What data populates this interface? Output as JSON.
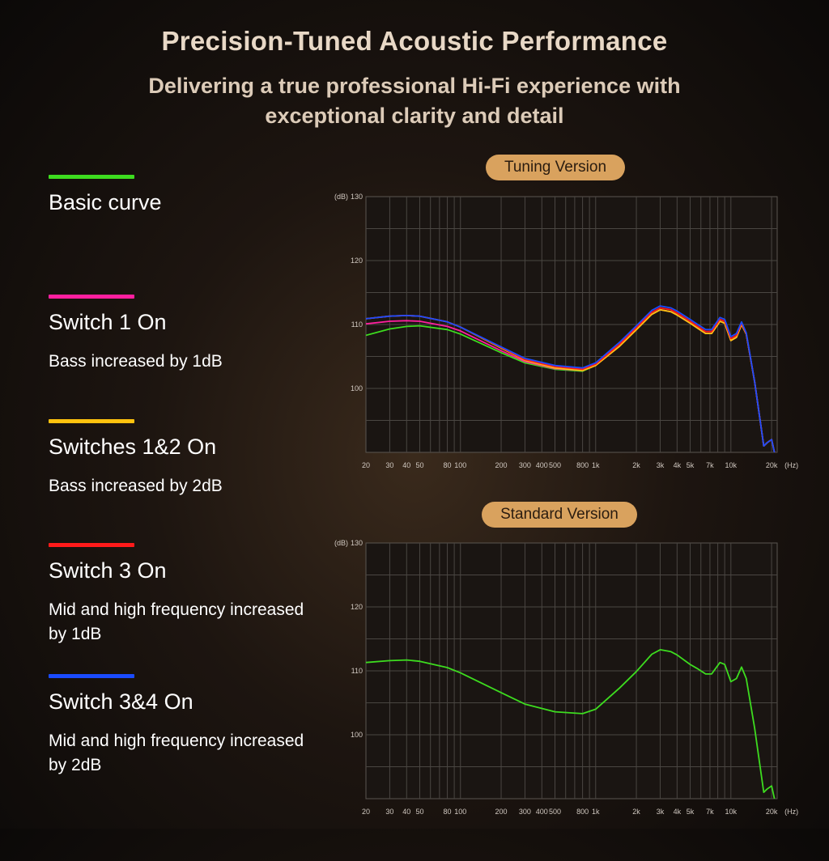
{
  "header": {
    "title": "Precision-Tuned Acoustic Performance",
    "subtitle": "Delivering a true professional Hi-Fi experience with exceptional clarity and detail"
  },
  "legend": [
    {
      "label": "Basic curve",
      "description": "",
      "color": "#3ddc1f"
    },
    {
      "label": "Switch 1 On",
      "description": "Bass increased by 1dB",
      "color": "#ff1f9f"
    },
    {
      "label": "Switches 1&2 On",
      "description": "Bass increased by 2dB",
      "color": "#ffc20e"
    },
    {
      "label": "Switch 3 On",
      "description": "Mid and high frequency increased by 1dB",
      "color": "#ff1a1a"
    },
    {
      "label": "Switch 3&4 On",
      "description": "Mid and high frequency increased by 2dB",
      "color": "#1a4bff"
    }
  ],
  "chart_data": [
    {
      "type": "line",
      "title": "Tuning Version",
      "xscale": "log",
      "xlim": [
        20,
        22000
      ],
      "ylim": [
        90,
        130
      ],
      "ylabel_unit": "(dB)",
      "xlabel_unit": "(Hz)",
      "yticks": [
        130,
        120,
        110,
        100
      ],
      "xticks": [
        {
          "v": 20,
          "l": "20"
        },
        {
          "v": 30,
          "l": "30"
        },
        {
          "v": 40,
          "l": "40"
        },
        {
          "v": 50,
          "l": "50"
        },
        {
          "v": 80,
          "l": "80"
        },
        {
          "v": 100,
          "l": "100"
        },
        {
          "v": 200,
          "l": "200"
        },
        {
          "v": 300,
          "l": "300"
        },
        {
          "v": 400,
          "l": "400"
        },
        {
          "v": 500,
          "l": "500"
        },
        {
          "v": 800,
          "l": "800"
        },
        {
          "v": 1000,
          "l": "1k"
        },
        {
          "v": 2000,
          "l": "2k"
        },
        {
          "v": 3000,
          "l": "3k"
        },
        {
          "v": 4000,
          "l": "4k"
        },
        {
          "v": 5000,
          "l": "5k"
        },
        {
          "v": 7000,
          "l": "7k"
        },
        {
          "v": 10000,
          "l": "10k"
        },
        {
          "v": 20000,
          "l": "20k"
        }
      ],
      "grid": true,
      "series": [
        {
          "name": "Basic curve",
          "color": "#3ddc1f",
          "points": [
            [
              20,
              108.3
            ],
            [
              30,
              109.3
            ],
            [
              40,
              109.7
            ],
            [
              50,
              109.8
            ],
            [
              80,
              109.2
            ],
            [
              100,
              108.5
            ],
            [
              200,
              105.6
            ],
            [
              300,
              104.0
            ],
            [
              500,
              103.0
            ],
            [
              800,
              102.7
            ],
            [
              1000,
              103.6
            ],
            [
              1500,
              106.6
            ],
            [
              2000,
              109.2
            ],
            [
              2600,
              111.6
            ],
            [
              3000,
              112.3
            ],
            [
              3600,
              112.0
            ],
            [
              4000,
              111.5
            ],
            [
              5000,
              110.2
            ],
            [
              5600,
              109.5
            ],
            [
              6500,
              108.6
            ],
            [
              7200,
              108.6
            ],
            [
              8300,
              110.5
            ],
            [
              9000,
              110.2
            ],
            [
              10000,
              107.5
            ],
            [
              11000,
              108.0
            ],
            [
              12000,
              110.0
            ],
            [
              13000,
              108.5
            ],
            [
              15000,
              101.0
            ],
            [
              17500,
              91.0
            ],
            [
              18500,
              91.5
            ],
            [
              20000,
              92.0
            ],
            [
              21000,
              90.0
            ]
          ]
        },
        {
          "name": "Switch 1 On",
          "color": "#ff1f9f",
          "points": [
            [
              20,
              110.1
            ],
            [
              30,
              110.5
            ],
            [
              40,
              110.6
            ],
            [
              50,
              110.5
            ],
            [
              80,
              109.7
            ],
            [
              100,
              109.0
            ],
            [
              200,
              105.9
            ],
            [
              300,
              104.2
            ],
            [
              500,
              103.1
            ],
            [
              800,
              102.8
            ],
            [
              1000,
              103.6
            ],
            [
              1500,
              106.6
            ],
            [
              2000,
              109.2
            ],
            [
              2600,
              111.6
            ],
            [
              3000,
              112.3
            ],
            [
              3600,
              112.0
            ],
            [
              4000,
              111.5
            ],
            [
              5000,
              110.2
            ],
            [
              5600,
              109.5
            ],
            [
              6500,
              108.6
            ],
            [
              7200,
              108.6
            ],
            [
              8300,
              110.5
            ],
            [
              9000,
              110.2
            ],
            [
              10000,
              107.5
            ],
            [
              11000,
              108.0
            ],
            [
              12000,
              110.0
            ],
            [
              13000,
              108.5
            ],
            [
              15000,
              101.0
            ],
            [
              17500,
              91.0
            ],
            [
              18500,
              91.5
            ],
            [
              20000,
              92.0
            ],
            [
              21000,
              90.0
            ]
          ]
        },
        {
          "name": "Switches 1&2 On",
          "color": "#ffc20e",
          "points": [
            [
              20,
              110.9
            ],
            [
              30,
              111.3
            ],
            [
              40,
              111.4
            ],
            [
              50,
              111.3
            ],
            [
              80,
              110.4
            ],
            [
              100,
              109.6
            ],
            [
              200,
              106.3
            ],
            [
              300,
              104.4
            ],
            [
              500,
              103.2
            ],
            [
              800,
              102.8
            ],
            [
              1000,
              103.6
            ],
            [
              1500,
              106.6
            ],
            [
              2000,
              109.2
            ],
            [
              2600,
              111.6
            ],
            [
              3000,
              112.3
            ],
            [
              3600,
              112.0
            ],
            [
              4000,
              111.5
            ],
            [
              5000,
              110.2
            ],
            [
              5600,
              109.5
            ],
            [
              6500,
              108.6
            ],
            [
              7200,
              108.6
            ],
            [
              8300,
              110.5
            ],
            [
              9000,
              110.2
            ],
            [
              10000,
              107.5
            ],
            [
              11000,
              108.0
            ],
            [
              12000,
              110.0
            ],
            [
              13000,
              108.5
            ],
            [
              15000,
              101.0
            ],
            [
              17500,
              91.0
            ],
            [
              18500,
              91.5
            ],
            [
              20000,
              92.0
            ],
            [
              21000,
              90.0
            ]
          ]
        },
        {
          "name": "Switch 3 On",
          "color": "#ff1a1a",
          "points": [
            [
              20,
              110.9
            ],
            [
              30,
              111.3
            ],
            [
              40,
              111.4
            ],
            [
              50,
              111.3
            ],
            [
              80,
              110.4
            ],
            [
              100,
              109.6
            ],
            [
              200,
              106.4
            ],
            [
              300,
              104.5
            ],
            [
              500,
              103.4
            ],
            [
              800,
              103.0
            ],
            [
              1000,
              103.8
            ],
            [
              1500,
              106.9
            ],
            [
              2000,
              109.5
            ],
            [
              2600,
              111.9
            ],
            [
              3000,
              112.6
            ],
            [
              3600,
              112.3
            ],
            [
              4000,
              111.8
            ],
            [
              5000,
              110.5
            ],
            [
              5600,
              109.8
            ],
            [
              6500,
              108.9
            ],
            [
              7200,
              108.9
            ],
            [
              8300,
              110.8
            ],
            [
              9000,
              110.5
            ],
            [
              10000,
              107.8
            ],
            [
              11000,
              108.3
            ],
            [
              12000,
              110.2
            ],
            [
              13000,
              108.6
            ],
            [
              15000,
              101.0
            ],
            [
              17500,
              91.0
            ],
            [
              18500,
              91.5
            ],
            [
              20000,
              92.0
            ],
            [
              21000,
              90.0
            ]
          ]
        },
        {
          "name": "Switch 3&4 On",
          "color": "#1a4bff",
          "points": [
            [
              20,
              110.9
            ],
            [
              30,
              111.3
            ],
            [
              40,
              111.4
            ],
            [
              50,
              111.3
            ],
            [
              80,
              110.4
            ],
            [
              100,
              109.6
            ],
            [
              200,
              106.5
            ],
            [
              300,
              104.7
            ],
            [
              500,
              103.6
            ],
            [
              800,
              103.2
            ],
            [
              1000,
              104.0
            ],
            [
              1500,
              107.2
            ],
            [
              2000,
              109.8
            ],
            [
              2600,
              112.2
            ],
            [
              3000,
              112.9
            ],
            [
              3600,
              112.6
            ],
            [
              4000,
              112.1
            ],
            [
              5000,
              110.8
            ],
            [
              5600,
              110.1
            ],
            [
              6500,
              109.2
            ],
            [
              7200,
              109.2
            ],
            [
              8300,
              111.1
            ],
            [
              9000,
              110.8
            ],
            [
              10000,
              108.1
            ],
            [
              11000,
              108.6
            ],
            [
              12000,
              110.4
            ],
            [
              13000,
              108.7
            ],
            [
              15000,
              101.0
            ],
            [
              17500,
              91.0
            ],
            [
              18500,
              91.5
            ],
            [
              20000,
              92.0
            ],
            [
              21000,
              90.0
            ]
          ]
        }
      ]
    },
    {
      "type": "line",
      "title": "Standard Version",
      "xscale": "log",
      "xlim": [
        20,
        22000
      ],
      "ylim": [
        90,
        130
      ],
      "ylabel_unit": "(dB)",
      "xlabel_unit": "(Hz)",
      "yticks": [
        130,
        120,
        110,
        100
      ],
      "xticks": [
        {
          "v": 20,
          "l": "20"
        },
        {
          "v": 30,
          "l": "30"
        },
        {
          "v": 40,
          "l": "40"
        },
        {
          "v": 50,
          "l": "50"
        },
        {
          "v": 80,
          "l": "80"
        },
        {
          "v": 100,
          "l": "100"
        },
        {
          "v": 200,
          "l": "200"
        },
        {
          "v": 300,
          "l": "300"
        },
        {
          "v": 400,
          "l": "400"
        },
        {
          "v": 500,
          "l": "500"
        },
        {
          "v": 800,
          "l": "800"
        },
        {
          "v": 1000,
          "l": "1k"
        },
        {
          "v": 2000,
          "l": "2k"
        },
        {
          "v": 3000,
          "l": "3k"
        },
        {
          "v": 4000,
          "l": "4k"
        },
        {
          "v": 5000,
          "l": "5k"
        },
        {
          "v": 7000,
          "l": "7k"
        },
        {
          "v": 10000,
          "l": "10k"
        },
        {
          "v": 20000,
          "l": "20k"
        }
      ],
      "grid": true,
      "series": [
        {
          "color": "#3ddc1f",
          "points": [
            [
              20,
              111.3
            ],
            [
              30,
              111.6
            ],
            [
              40,
              111.7
            ],
            [
              50,
              111.5
            ],
            [
              80,
              110.5
            ],
            [
              100,
              109.7
            ],
            [
              200,
              106.6
            ],
            [
              300,
              104.8
            ],
            [
              500,
              103.6
            ],
            [
              800,
              103.3
            ],
            [
              1000,
              104.0
            ],
            [
              1500,
              107.3
            ],
            [
              2000,
              109.9
            ],
            [
              2600,
              112.6
            ],
            [
              3000,
              113.3
            ],
            [
              3600,
              113.0
            ],
            [
              4000,
              112.5
            ],
            [
              5000,
              111.0
            ],
            [
              5600,
              110.4
            ],
            [
              6500,
              109.5
            ],
            [
              7200,
              109.5
            ],
            [
              8300,
              111.3
            ],
            [
              9000,
              111.0
            ],
            [
              10000,
              108.3
            ],
            [
              11000,
              108.8
            ],
            [
              12000,
              110.6
            ],
            [
              13000,
              108.8
            ],
            [
              15000,
              101.0
            ],
            [
              17500,
              91.0
            ],
            [
              18500,
              91.5
            ],
            [
              20000,
              92.0
            ],
            [
              21000,
              90.0
            ]
          ]
        }
      ]
    }
  ]
}
